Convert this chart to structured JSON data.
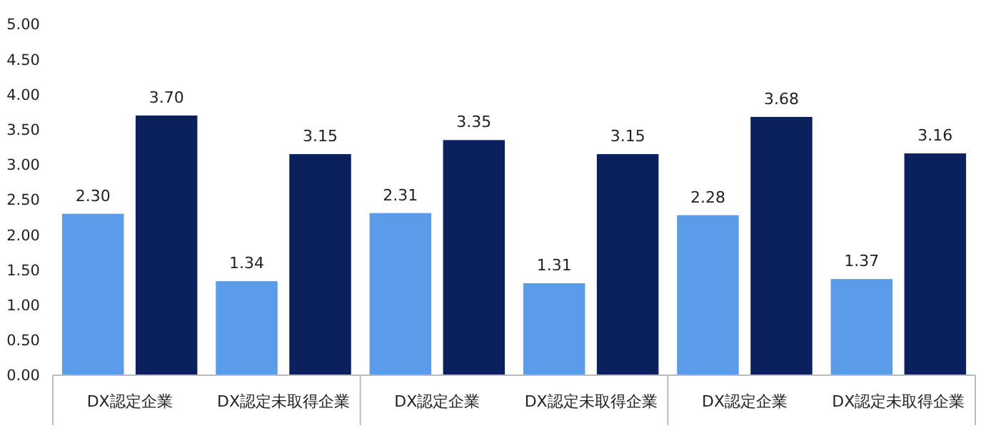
{
  "chart_data": {
    "type": "bar",
    "categories": [
      "DX認定企業",
      "DX認定未取得企業",
      "DX認定企業",
      "DX認定未取得企業",
      "DX認定企業",
      "DX認定未取得企業"
    ],
    "series": [
      {
        "color": "#5b9cea",
        "values": [
          2.3,
          1.34,
          2.31,
          1.31,
          2.28,
          1.37
        ],
        "value_labels": [
          "2.30",
          "1.34",
          "2.31",
          "1.31",
          "2.28",
          "1.37"
        ]
      },
      {
        "color": "#0b215e",
        "values": [
          3.7,
          3.15,
          3.35,
          3.15,
          3.68,
          3.16
        ],
        "value_labels": [
          "3.70",
          "3.15",
          "3.35",
          "3.15",
          "3.68",
          "3.16"
        ]
      }
    ],
    "ylim": [
      0,
      5
    ],
    "yticks": [
      {
        "value": 0,
        "label": "0.00"
      },
      {
        "value": 0.5,
        "label": "0.50"
      },
      {
        "value": 1,
        "label": "1.00"
      },
      {
        "value": 1.5,
        "label": "1.50"
      },
      {
        "value": 2,
        "label": "2.00"
      },
      {
        "value": 2.5,
        "label": "2.50"
      },
      {
        "value": 3,
        "label": "3.00"
      },
      {
        "value": 3.5,
        "label": "3.50"
      },
      {
        "value": 4,
        "label": "4.00"
      },
      {
        "value": 4.5,
        "label": "4.50"
      },
      {
        "value": 5,
        "label": "5.00"
      }
    ]
  }
}
